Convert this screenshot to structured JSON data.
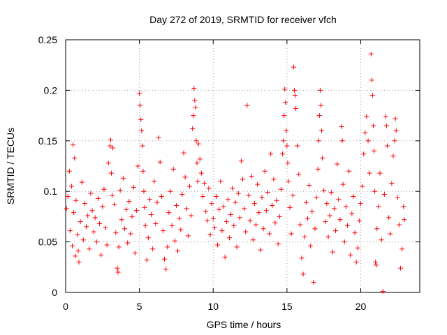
{
  "chart_data": {
    "type": "scatter",
    "title": "Day 272 of 2019, SRMTID for receiver vfch",
    "xlabel": "GPS time / hours",
    "ylabel": "SRMTID / TECUs",
    "xlim": [
      0,
      24
    ],
    "ylim": [
      0,
      0.25
    ],
    "xticks": [
      0,
      5,
      10,
      15,
      20
    ],
    "yticks": [
      0,
      0.05,
      0.1,
      0.15,
      0.2,
      0.25
    ],
    "xtick_labels": [
      "0",
      "5",
      "10",
      "15",
      "20"
    ],
    "ytick_labels": [
      "0",
      "0.05",
      "0.1",
      "0.15",
      "0.2",
      "0.25"
    ],
    "grid": true,
    "marker": "+",
    "marker_color": "#ff0000",
    "series": [
      {
        "name": "vfch",
        "points": [
          [
            0.05,
            0.083
          ],
          [
            0.15,
            0.095
          ],
          [
            0.25,
            0.12
          ],
          [
            0.3,
            0.061
          ],
          [
            0.4,
            0.105
          ],
          [
            0.45,
            0.046
          ],
          [
            0.5,
            0.146
          ],
          [
            0.55,
            0.079
          ],
          [
            0.6,
            0.133
          ],
          [
            0.65,
            0.036
          ],
          [
            0.7,
            0.091
          ],
          [
            0.8,
            0.057
          ],
          [
            0.85,
            0.041
          ],
          [
            0.9,
            0.03
          ],
          [
            1.0,
            0.07
          ],
          [
            1.1,
            0.109
          ],
          [
            1.2,
            0.052
          ],
          [
            1.3,
            0.088
          ],
          [
            1.4,
            0.065
          ],
          [
            1.5,
            0.076
          ],
          [
            1.6,
            0.043
          ],
          [
            1.7,
            0.098
          ],
          [
            1.8,
            0.081
          ],
          [
            1.9,
            0.06
          ],
          [
            2.0,
            0.074
          ],
          [
            2.1,
            0.05
          ],
          [
            2.2,
            0.093
          ],
          [
            2.3,
            0.068
          ],
          [
            2.4,
            0.037
          ],
          [
            2.5,
            0.085
          ],
          [
            2.6,
            0.102
          ],
          [
            2.7,
            0.064
          ],
          [
            2.8,
            0.047
          ],
          [
            2.9,
            0.128
          ],
          [
            3.0,
            0.145
          ],
          [
            3.05,
            0.151
          ],
          [
            3.1,
            0.118
          ],
          [
            3.15,
            0.096
          ],
          [
            3.2,
            0.143
          ],
          [
            3.3,
            0.087
          ],
          [
            3.4,
            0.059
          ],
          [
            3.5,
            0.024
          ],
          [
            3.55,
            0.02
          ],
          [
            3.6,
            0.045
          ],
          [
            3.7,
            0.101
          ],
          [
            3.8,
            0.072
          ],
          [
            3.9,
            0.113
          ],
          [
            4.0,
            0.063
          ],
          [
            4.1,
            0.082
          ],
          [
            4.2,
            0.049
          ],
          [
            4.3,
            0.09
          ],
          [
            4.4,
            0.058
          ],
          [
            4.5,
            0.075
          ],
          [
            4.6,
            0.104
          ],
          [
            4.7,
            0.039
          ],
          [
            4.8,
            0.081
          ],
          [
            4.9,
            0.125
          ],
          [
            5.0,
            0.197
          ],
          [
            5.05,
            0.185
          ],
          [
            5.1,
            0.171
          ],
          [
            5.15,
            0.16
          ],
          [
            5.2,
            0.145
          ],
          [
            5.25,
            0.12
          ],
          [
            5.3,
            0.1
          ],
          [
            5.35,
            0.084
          ],
          [
            5.4,
            0.066
          ],
          [
            5.5,
            0.032
          ],
          [
            5.6,
            0.054
          ],
          [
            5.7,
            0.092
          ],
          [
            5.8,
            0.077
          ],
          [
            5.9,
            0.043
          ],
          [
            6.0,
            0.11
          ],
          [
            6.1,
            0.068
          ],
          [
            6.2,
            0.089
          ],
          [
            6.3,
            0.153
          ],
          [
            6.4,
            0.129
          ],
          [
            6.5,
            0.095
          ],
          [
            6.6,
            0.061
          ],
          [
            6.7,
            0.033
          ],
          [
            6.8,
            0.023
          ],
          [
            6.9,
            0.045
          ],
          [
            7.0,
            0.079
          ],
          [
            7.1,
            0.1
          ],
          [
            7.2,
            0.066
          ],
          [
            7.3,
            0.122
          ],
          [
            7.4,
            0.051
          ],
          [
            7.5,
            0.086
          ],
          [
            7.6,
            0.041
          ],
          [
            7.7,
            0.073
          ],
          [
            7.8,
            0.062
          ],
          [
            7.9,
            0.097
          ],
          [
            8.0,
            0.138
          ],
          [
            8.1,
            0.114
          ],
          [
            8.2,
            0.083
          ],
          [
            8.3,
            0.056
          ],
          [
            8.4,
            0.105
          ],
          [
            8.5,
            0.076
          ],
          [
            8.6,
            0.162
          ],
          [
            8.65,
            0.175
          ],
          [
            8.7,
            0.202
          ],
          [
            8.75,
            0.19
          ],
          [
            8.8,
            0.183
          ],
          [
            8.85,
            0.15
          ],
          [
            8.9,
            0.128
          ],
          [
            8.95,
            0.11
          ],
          [
            9.0,
            0.147
          ],
          [
            9.1,
            0.132
          ],
          [
            9.2,
            0.118
          ],
          [
            9.3,
            0.095
          ],
          [
            9.4,
            0.108
          ],
          [
            9.5,
            0.08
          ],
          [
            9.6,
            0.071
          ],
          [
            9.7,
            0.103
          ],
          [
            9.8,
            0.057
          ],
          [
            9.9,
            0.088
          ],
          [
            10.0,
            0.073
          ],
          [
            10.1,
            0.064
          ],
          [
            10.2,
            0.095
          ],
          [
            10.3,
            0.047
          ],
          [
            10.4,
            0.082
          ],
          [
            10.5,
            0.11
          ],
          [
            10.6,
            0.061
          ],
          [
            10.7,
            0.085
          ],
          [
            10.8,
            0.035
          ],
          [
            10.9,
            0.07
          ],
          [
            11.0,
            0.092
          ],
          [
            11.1,
            0.054
          ],
          [
            11.2,
            0.077
          ],
          [
            11.3,
            0.103
          ],
          [
            11.4,
            0.066
          ],
          [
            11.5,
            0.089
          ],
          [
            11.6,
            0.045
          ],
          [
            11.7,
            0.098
          ],
          [
            11.8,
            0.074
          ],
          [
            11.9,
            0.13
          ],
          [
            12.0,
            0.112
          ],
          [
            12.1,
            0.083
          ],
          [
            12.2,
            0.06
          ],
          [
            12.3,
            0.185
          ],
          [
            12.4,
            0.096
          ],
          [
            12.5,
            0.071
          ],
          [
            12.6,
            0.115
          ],
          [
            12.7,
            0.052
          ],
          [
            12.8,
            0.088
          ],
          [
            12.9,
            0.067
          ],
          [
            13.0,
            0.107
          ],
          [
            13.1,
            0.079
          ],
          [
            13.2,
            0.042
          ],
          [
            13.3,
            0.094
          ],
          [
            13.4,
            0.063
          ],
          [
            13.5,
            0.12
          ],
          [
            13.6,
            0.081
          ],
          [
            13.7,
            0.099
          ],
          [
            13.8,
            0.058
          ],
          [
            13.9,
            0.137
          ],
          [
            14.0,
            0.086
          ],
          [
            14.1,
            0.112
          ],
          [
            14.2,
            0.069
          ],
          [
            14.3,
            0.091
          ],
          [
            14.4,
            0.048
          ],
          [
            14.5,
            0.075
          ],
          [
            14.6,
            0.102
          ],
          [
            14.7,
            0.137
          ],
          [
            14.75,
            0.15
          ],
          [
            14.8,
            0.175
          ],
          [
            14.85,
            0.201
          ],
          [
            14.9,
            0.188
          ],
          [
            14.95,
            0.16
          ],
          [
            15.0,
            0.145
          ],
          [
            15.05,
            0.128
          ],
          [
            15.1,
            0.11
          ],
          [
            15.2,
            0.084
          ],
          [
            15.3,
            0.058
          ],
          [
            15.4,
            0.096
          ],
          [
            15.45,
            0.223
          ],
          [
            15.5,
            0.2
          ],
          [
            15.55,
            0.195
          ],
          [
            15.6,
            0.182
          ],
          [
            15.7,
            0.145
          ],
          [
            15.8,
            0.117
          ],
          [
            15.9,
            0.067
          ],
          [
            16.0,
            0.034
          ],
          [
            16.1,
            0.018
          ],
          [
            16.2,
            0.055
          ],
          [
            16.3,
            0.089
          ],
          [
            16.4,
            0.073
          ],
          [
            16.5,
            0.106
          ],
          [
            16.6,
            0.046
          ],
          [
            16.7,
            0.08
          ],
          [
            16.8,
            0.01
          ],
          [
            16.9,
            0.063
          ],
          [
            17.0,
            0.094
          ],
          [
            17.1,
            0.122
          ],
          [
            17.15,
            0.15
          ],
          [
            17.2,
            0.175
          ],
          [
            17.25,
            0.2
          ],
          [
            17.3,
            0.185
          ],
          [
            17.35,
            0.16
          ],
          [
            17.4,
            0.133
          ],
          [
            17.5,
            0.101
          ],
          [
            17.6,
            0.07
          ],
          [
            17.7,
            0.088
          ],
          [
            17.8,
            0.055
          ],
          [
            17.9,
            0.076
          ],
          [
            18.0,
            0.099
          ],
          [
            18.1,
            0.04
          ],
          [
            18.2,
            0.083
          ],
          [
            18.3,
            0.061
          ],
          [
            18.4,
            0.127
          ],
          [
            18.5,
            0.092
          ],
          [
            18.6,
            0.072
          ],
          [
            18.7,
            0.164
          ],
          [
            18.75,
            0.15
          ],
          [
            18.8,
            0.107
          ],
          [
            18.9,
            0.05
          ],
          [
            19.0,
            0.085
          ],
          [
            19.1,
            0.066
          ],
          [
            19.2,
            0.12
          ],
          [
            19.3,
            0.037
          ],
          [
            19.4,
            0.078
          ],
          [
            19.5,
            0.095
          ],
          [
            19.6,
            0.059
          ],
          [
            19.7,
            0.03
          ],
          [
            19.8,
            0.044
          ],
          [
            19.9,
            0.071
          ],
          [
            20.0,
            0.088
          ],
          [
            20.1,
            0.105
          ],
          [
            20.2,
            0.137
          ],
          [
            20.3,
            0.158
          ],
          [
            20.4,
            0.174
          ],
          [
            20.5,
            0.15
          ],
          [
            20.6,
            0.118
          ],
          [
            20.7,
            0.236
          ],
          [
            20.75,
            0.21
          ],
          [
            20.8,
            0.195
          ],
          [
            20.85,
            0.165
          ],
          [
            20.9,
            0.14
          ],
          [
            20.95,
            0.1
          ],
          [
            21.0,
            0.03
          ],
          [
            21.05,
            0.027
          ],
          [
            21.1,
            0.063
          ],
          [
            21.2,
            0.085
          ],
          [
            21.3,
            0.118
          ],
          [
            21.4,
            0.052
          ],
          [
            21.5,
            0.001
          ],
          [
            21.6,
            0.097
          ],
          [
            21.7,
            0.174
          ],
          [
            21.75,
            0.165
          ],
          [
            21.8,
            0.145
          ],
          [
            21.9,
            0.074
          ],
          [
            22.0,
            0.058
          ],
          [
            22.1,
            0.108
          ],
          [
            22.2,
            0.135
          ],
          [
            22.3,
            0.15
          ],
          [
            22.35,
            0.172
          ],
          [
            22.4,
            0.16
          ],
          [
            22.5,
            0.094
          ],
          [
            22.6,
            0.067
          ],
          [
            22.7,
            0.024
          ],
          [
            22.8,
            0.043
          ],
          [
            22.9,
            0.085
          ],
          [
            22.95,
            0.072
          ]
        ]
      }
    ]
  }
}
